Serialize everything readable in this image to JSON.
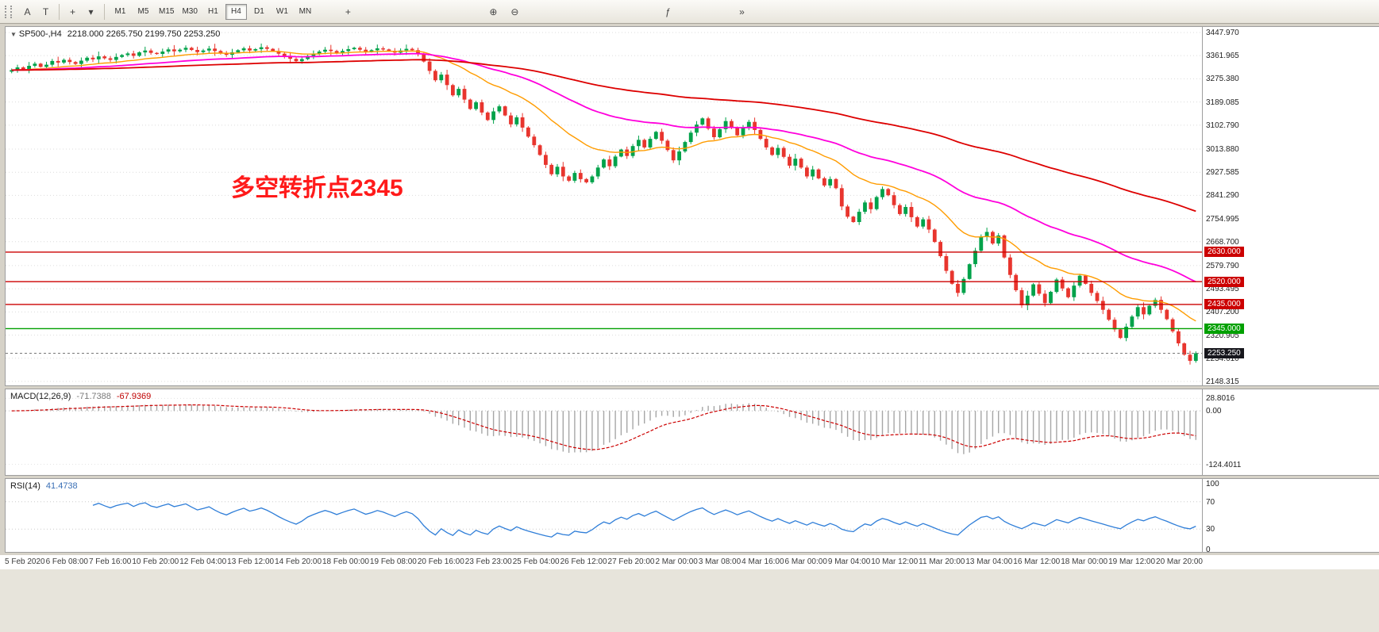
{
  "toolbar": {
    "tools": [
      {
        "label": "A"
      },
      {
        "label": "T"
      }
    ],
    "objects_glyph": "+",
    "dropdown_glyph": "▾",
    "timeframes": [
      "M1",
      "M5",
      "M15",
      "M30",
      "H1",
      "H4",
      "D1",
      "W1",
      "MN"
    ],
    "active_timeframe": "H4",
    "extra_icons": [
      {
        "name": "crosshair-icon",
        "glyph": "+",
        "gap": 28
      },
      {
        "name": "zoom-in-icon",
        "glyph": "⊕",
        "gap": 160
      },
      {
        "name": "zoom-out-icon",
        "glyph": "⊖",
        "gap": 4
      },
      {
        "name": "indicators-icon",
        "glyph": "ƒ",
        "gap": 170
      },
      {
        "name": "auto-scroll-icon",
        "glyph": "»",
        "gap": 70
      }
    ]
  },
  "chart": {
    "collapse_glyph": "▼",
    "symbol_period": "SP500-,H4",
    "ohlc": "2218.000 2265.750 2199.750 2253.250",
    "annotation": {
      "text": "多空转折点2345",
      "color": "#FF1A1A"
    }
  },
  "macd_panel": {
    "title": "MACD(12,26,9)",
    "main_value": "-71.7388",
    "signal_value": "-67.9369"
  },
  "rsi_panel": {
    "title": "RSI(14)",
    "value": "41.4738"
  },
  "chart_data": {
    "type": "candlestick",
    "symbol": "SP500-",
    "timeframe": "H4",
    "last_ohlc": {
      "open": 2218.0,
      "high": 2265.75,
      "low": 2199.75,
      "close": 2253.25
    },
    "price_axis": {
      "min": 2148.315,
      "max": 3447.97,
      "ticks": [
        "3447.970",
        "3361.965",
        "3275.380",
        "3189.085",
        "3102.790",
        "3013.880",
        "2927.585",
        "2841.290",
        "2754.995",
        "2668.700",
        "2579.790",
        "2493.495",
        "2407.200",
        "2320.905",
        "2234.610",
        "2148.315"
      ]
    },
    "colors": {
      "up": "#00A24A",
      "down": "#E8352E",
      "macd_hist": "#A6A6A6",
      "macd_signal": "#CC0000",
      "rsi_line": "#2F7ED8",
      "grid": "#dcdcdc"
    },
    "levels": [
      {
        "price": 2630,
        "label": "2630.000",
        "color": "#CC0000"
      },
      {
        "price": 2520,
        "label": "2520.000",
        "color": "#CC0000"
      },
      {
        "price": 2435,
        "label": "2435.000",
        "color": "#CC0000"
      },
      {
        "price": 2345,
        "label": "2345.000",
        "color": "#00A000"
      }
    ],
    "current_price": {
      "price": 2253.25,
      "label": "2253.250",
      "badge_color": "#16161c"
    },
    "moving_averages": [
      {
        "period": 21,
        "color": "#FF9C00",
        "width": 1.4
      },
      {
        "period": 55,
        "color": "#FF00DC",
        "width": 1.8
      },
      {
        "period": 144,
        "color": "#DD0000",
        "width": 1.8
      }
    ],
    "open_rule": "previous_close",
    "wick_cycle": [
      6,
      10,
      4,
      14,
      7,
      3,
      11,
      8,
      16,
      5,
      9,
      4,
      12,
      6,
      10,
      18,
      5,
      8,
      13,
      4
    ],
    "closes": [
      3308,
      3318,
      3310,
      3324,
      3332,
      3320,
      3328,
      3342,
      3336,
      3346,
      3338,
      3331,
      3343,
      3354,
      3348,
      3359,
      3352,
      3346,
      3357,
      3364,
      3370,
      3361,
      3374,
      3381,
      3372,
      3368,
      3377,
      3385,
      3378,
      3384,
      3391,
      3383,
      3375,
      3381,
      3388,
      3379,
      3371,
      3365,
      3374,
      3382,
      3389,
      3381,
      3386,
      3393,
      3387,
      3379,
      3369,
      3359,
      3350,
      3341,
      3349,
      3361,
      3369,
      3377,
      3384,
      3379,
      3372,
      3379,
      3386,
      3391,
      3384,
      3377,
      3382,
      3389,
      3385,
      3379,
      3373,
      3381,
      3387,
      3382,
      3368,
      3340,
      3305,
      3270,
      3291,
      3252,
      3214,
      3238,
      3198,
      3163,
      3188,
      3150,
      3122,
      3154,
      3173,
      3139,
      3106,
      3132,
      3094,
      3060,
      3028,
      2992,
      2955,
      2920,
      2948,
      2912,
      2896,
      2925,
      2902,
      2890,
      2912,
      2945,
      2975,
      2950,
      2986,
      3012,
      2988,
      3025,
      3048,
      3020,
      3052,
      3078,
      3045,
      3010,
      2972,
      3005,
      3040,
      3075,
      3105,
      3128,
      3090,
      3058,
      3088,
      3118,
      3095,
      3065,
      3092,
      3115,
      3085,
      3052,
      3020,
      2992,
      3018,
      2985,
      2952,
      2978,
      2945,
      2912,
      2938,
      2905,
      2878,
      2902,
      2868,
      2800,
      2762,
      2742,
      2780,
      2815,
      2790,
      2835,
      2865,
      2842,
      2805,
      2772,
      2798,
      2760,
      2725,
      2752,
      2714,
      2668,
      2615,
      2560,
      2512,
      2478,
      2530,
      2585,
      2635,
      2688,
      2705,
      2662,
      2692,
      2610,
      2545,
      2488,
      2432,
      2468,
      2510,
      2475,
      2440,
      2482,
      2528,
      2495,
      2462,
      2505,
      2542,
      2512,
      2478,
      2448,
      2415,
      2378,
      2342,
      2310,
      2352,
      2390,
      2425,
      2398,
      2430,
      2452,
      2415,
      2380,
      2335,
      2290,
      2248,
      2225,
      2253.25
    ],
    "indicators": {
      "macd": {
        "params": [
          12,
          26,
          9
        ],
        "current": [
          -71.7388,
          -67.9369
        ],
        "scale_marks": [
          "28.8016",
          "0.00",
          "-124.4011"
        ]
      },
      "rsi": {
        "params": [
          14
        ],
        "current": 41.4738,
        "scale_marks": [
          "100",
          "70",
          "30",
          "0"
        ]
      }
    },
    "x_labels": [
      "5 Feb 2020",
      "6 Feb 08:00",
      "7 Feb 16:00",
      "10 Feb 20:00",
      "12 Feb 04:00",
      "13 Feb 12:00",
      "14 Feb 20:00",
      "18 Feb 00:00",
      "19 Feb 08:00",
      "20 Feb 16:00",
      "23 Feb 23:00",
      "25 Feb 04:00",
      "26 Feb 12:00",
      "27 Feb 20:00",
      "2 Mar 00:00",
      "3 Mar 08:00",
      "4 Mar 16:00",
      "6 Mar 00:00",
      "9 Mar 04:00",
      "10 Mar 12:00",
      "11 Mar 20:00",
      "13 Mar 04:00",
      "16 Mar 12:00",
      "18 Mar 00:00",
      "19 Mar 12:00",
      "20 Mar 20:00"
    ]
  }
}
